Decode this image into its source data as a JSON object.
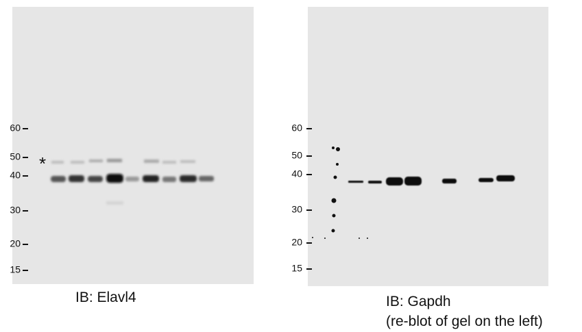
{
  "panels": [
    {
      "markers": [
        60,
        50,
        40,
        30,
        20,
        15
      ],
      "annotation": "*",
      "caption": "IB: Elavl4"
    },
    {
      "markers": [
        60,
        50,
        40,
        30,
        20,
        15
      ],
      "caption_lines": [
        "IB: Gapdh",
        "(re-blot of gel on the left)"
      ]
    }
  ]
}
